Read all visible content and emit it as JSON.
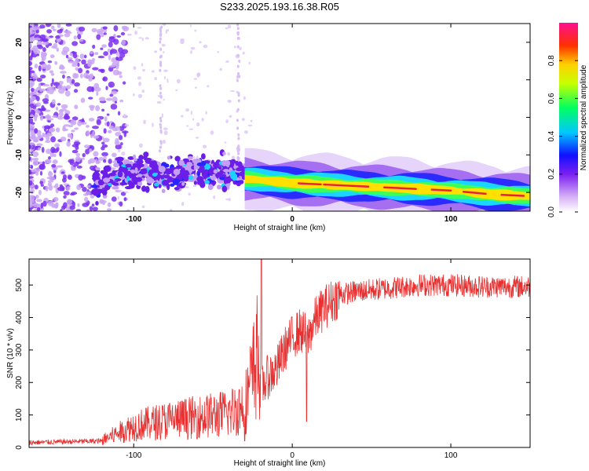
{
  "title": "S233.2025.193.16.38.R05",
  "chart_data": [
    {
      "type": "heatmap",
      "xlabel": "Height of straight line (km)",
      "ylabel": "Frequency (Hz)",
      "xlim": [
        -166,
        150
      ],
      "ylim": [
        -25,
        25
      ],
      "x_ticks": [
        -100,
        0,
        100
      ],
      "y_ticks": [
        20,
        10,
        0,
        -10,
        -20
      ],
      "colorbar": {
        "label": "Normalized spectral amplitude",
        "range": [
          0,
          1
        ],
        "ticks": [
          "0.0",
          "0.2",
          "0.4",
          "0.6",
          "0.8"
        ]
      },
      "trace": {
        "x": [
          -125,
          -100,
          -75,
          -50,
          -25,
          0,
          25,
          50,
          75,
          100,
          125,
          150
        ],
        "y": [
          -20,
          -16,
          -16.5,
          -16,
          -16.5,
          -17.5,
          -18,
          -18.5,
          -19,
          -19.5,
          -20.5,
          -21
        ]
      }
    },
    {
      "type": "line",
      "xlabel": "Height of straight line (km)",
      "ylabel": "SNR (10 * v/v)",
      "xlim": [
        -166,
        150
      ],
      "ylim": [
        0,
        580
      ],
      "x_ticks": [
        -100,
        0,
        100
      ],
      "y_ticks": [
        0,
        100,
        200,
        300,
        400,
        500
      ],
      "series_color": "#e83030",
      "trend": {
        "x": [
          -166,
          -120,
          -110,
          -100,
          -80,
          -60,
          -40,
          -30,
          -25,
          -22,
          -20,
          -15,
          -10,
          -5,
          0,
          5,
          10,
          15,
          20,
          30,
          40,
          60,
          80,
          100,
          120,
          150
        ],
        "y": [
          15,
          20,
          40,
          60,
          75,
          85,
          95,
          120,
          200,
          260,
          180,
          220,
          240,
          300,
          340,
          360,
          340,
          400,
          430,
          470,
          480,
          490,
          500,
          500,
          495,
          495
        ]
      },
      "spikes": [
        {
          "x": -19.5,
          "y": 580
        },
        {
          "x": 9,
          "y": 80
        },
        {
          "x": -30,
          "y": 20
        }
      ]
    }
  ]
}
